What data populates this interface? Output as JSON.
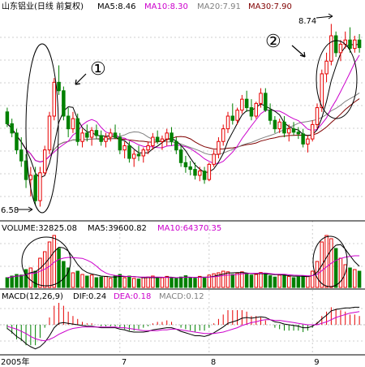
{
  "colors": {
    "up": "#e60000",
    "down": "#008000",
    "ma5": "#000000",
    "ma10": "#cc00cc",
    "ma20": "#808080",
    "ma30": "#800000",
    "vol_ma5": "#000000",
    "vol_ma10": "#cc00cc",
    "dif": "#000000",
    "dea": "#cc00cc",
    "text_black": "#000000",
    "text_gray": "#808080"
  },
  "header": {
    "title": "山东铝业(日线 前复权)",
    "ma5": "MA5:8.46",
    "ma10": "MA10:8.30",
    "ma20": "MA20:7.91",
    "ma30": "MA30:7.90"
  },
  "volume_header": {
    "volume": "VOLUME:32825.08",
    "ma5": "MA5:39600.82",
    "ma10": "MA10:64370.35"
  },
  "macd_header": {
    "title": "MACD(12,26,9)",
    "dif": "DIF:0.24",
    "dea": "DEA:0.18",
    "macd": "MACD:0.12"
  },
  "annotations": {
    "low_label": "6.58",
    "high_label": "8.74",
    "marker1": "①",
    "marker2": "②"
  },
  "x_axis": {
    "year": "2005年",
    "month_labels": [
      "7",
      "8",
      "9"
    ]
  },
  "chart_data": {
    "type": "candlestick",
    "title": "山东铝业(日线 前复权)",
    "price_range": [
      6.45,
      8.85
    ],
    "low_point": 6.58,
    "high_point": 8.74,
    "month_ticks": [
      {
        "label": "7",
        "index": 24
      },
      {
        "label": "8",
        "index": 43
      },
      {
        "label": "9",
        "index": 65
      }
    ],
    "candles": [
      [
        7.7,
        7.75,
        7.52,
        7.56
      ],
      [
        7.56,
        7.62,
        7.4,
        7.45
      ],
      [
        7.45,
        7.5,
        7.2,
        7.25
      ],
      [
        7.25,
        7.4,
        7.05,
        7.12
      ],
      [
        7.12,
        7.2,
        6.8,
        6.9
      ],
      [
        6.9,
        7.05,
        6.7,
        6.95
      ],
      [
        6.95,
        7.05,
        6.6,
        6.65
      ],
      [
        6.65,
        7.05,
        6.58,
        6.98
      ],
      [
        6.98,
        7.3,
        6.95,
        7.25
      ],
      [
        7.25,
        7.7,
        7.2,
        7.65
      ],
      [
        7.65,
        8.1,
        7.6,
        8.05
      ],
      [
        8.05,
        8.25,
        7.9,
        7.95
      ],
      [
        7.95,
        8.0,
        7.6,
        7.65
      ],
      [
        7.65,
        7.75,
        7.4,
        7.5
      ],
      [
        7.5,
        7.7,
        7.45,
        7.62
      ],
      [
        7.62,
        7.68,
        7.3,
        7.35
      ],
      [
        7.35,
        7.5,
        7.28,
        7.45
      ],
      [
        7.45,
        7.55,
        7.35,
        7.4
      ],
      [
        7.4,
        7.52,
        7.3,
        7.48
      ],
      [
        7.48,
        7.55,
        7.38,
        7.42
      ],
      [
        7.42,
        7.48,
        7.3,
        7.35
      ],
      [
        7.35,
        7.45,
        7.28,
        7.4
      ],
      [
        7.4,
        7.5,
        7.35,
        7.45
      ],
      [
        7.45,
        7.55,
        7.38,
        7.4
      ],
      [
        7.4,
        7.45,
        7.2,
        7.25
      ],
      [
        7.25,
        7.35,
        7.15,
        7.3
      ],
      [
        7.3,
        7.35,
        7.1,
        7.15
      ],
      [
        7.15,
        7.25,
        7.05,
        7.2
      ],
      [
        7.2,
        7.3,
        7.12,
        7.18
      ],
      [
        7.18,
        7.28,
        7.1,
        7.25
      ],
      [
        7.25,
        7.35,
        7.2,
        7.3
      ],
      [
        7.3,
        7.45,
        7.25,
        7.4
      ],
      [
        7.4,
        7.48,
        7.32,
        7.35
      ],
      [
        7.35,
        7.42,
        7.25,
        7.38
      ],
      [
        7.38,
        7.5,
        7.3,
        7.45
      ],
      [
        7.45,
        7.52,
        7.3,
        7.35
      ],
      [
        7.35,
        7.4,
        7.2,
        7.25
      ],
      [
        7.25,
        7.3,
        7.05,
        7.1
      ],
      [
        7.1,
        7.18,
        6.98,
        7.05
      ],
      [
        7.05,
        7.12,
        6.95,
        7.02
      ],
      [
        7.02,
        7.1,
        6.9,
        6.95
      ],
      [
        6.95,
        7.05,
        6.88,
        7.0
      ],
      [
        7.0,
        7.05,
        6.85,
        6.9
      ],
      [
        6.9,
        7.1,
        6.88,
        7.08
      ],
      [
        7.08,
        7.25,
        7.05,
        7.2
      ],
      [
        7.2,
        7.4,
        7.15,
        7.35
      ],
      [
        7.35,
        7.55,
        7.3,
        7.5
      ],
      [
        7.5,
        7.7,
        7.45,
        7.65
      ],
      [
        7.65,
        7.8,
        7.55,
        7.6
      ],
      [
        7.6,
        7.75,
        7.55,
        7.72
      ],
      [
        7.72,
        7.9,
        7.68,
        7.85
      ],
      [
        7.85,
        7.95,
        7.7,
        7.75
      ],
      [
        7.75,
        7.85,
        7.6,
        7.65
      ],
      [
        7.65,
        7.82,
        7.62,
        7.8
      ],
      [
        7.8,
        7.98,
        7.75,
        7.92
      ],
      [
        7.92,
        7.98,
        7.7,
        7.72
      ],
      [
        7.72,
        7.8,
        7.55,
        7.6
      ],
      [
        7.6,
        7.65,
        7.45,
        7.5
      ],
      [
        7.5,
        7.62,
        7.45,
        7.58
      ],
      [
        7.58,
        7.65,
        7.4,
        7.45
      ],
      [
        7.45,
        7.55,
        7.35,
        7.5
      ],
      [
        7.5,
        7.58,
        7.42,
        7.46
      ],
      [
        7.46,
        7.52,
        7.38,
        7.44
      ],
      [
        7.44,
        7.5,
        7.28,
        7.32
      ],
      [
        7.32,
        7.42,
        7.22,
        7.38
      ],
      [
        7.38,
        7.6,
        7.35,
        7.55
      ],
      [
        7.55,
        7.8,
        7.5,
        7.75
      ],
      [
        7.75,
        8.2,
        7.7,
        8.15
      ],
      [
        8.15,
        8.4,
        8.05,
        8.3
      ],
      [
        8.3,
        8.74,
        8.25,
        8.6
      ],
      [
        8.6,
        8.65,
        8.35,
        8.4
      ],
      [
        8.4,
        8.55,
        8.3,
        8.5
      ],
      [
        8.5,
        8.65,
        8.45,
        8.55
      ],
      [
        8.55,
        8.7,
        8.4,
        8.45
      ],
      [
        8.45,
        8.6,
        8.4,
        8.55
      ],
      [
        8.55,
        8.62,
        8.4,
        8.46
      ]
    ],
    "volume": [
      30,
      35,
      40,
      38,
      55,
      60,
      50,
      90,
      110,
      140,
      160,
      120,
      80,
      60,
      45,
      50,
      40,
      35,
      38,
      30,
      32,
      34,
      28,
      36,
      40,
      30,
      35,
      28,
      26,
      30,
      32,
      35,
      28,
      30,
      34,
      30,
      28,
      32,
      36,
      30,
      28,
      34,
      30,
      38,
      42,
      45,
      50,
      48,
      40,
      44,
      48,
      42,
      38,
      40,
      46,
      44,
      36,
      32,
      38,
      40,
      34,
      30,
      32,
      36,
      34,
      50,
      80,
      140,
      160,
      150,
      120,
      90,
      70,
      60,
      55,
      50
    ],
    "macd": {
      "dif": [
        -0.05,
        -0.1,
        -0.16,
        -0.2,
        -0.26,
        -0.3,
        -0.33,
        -0.3,
        -0.24,
        -0.15,
        -0.04,
        0.02,
        0.03,
        0.02,
        0.01,
        0.0,
        -0.01,
        -0.02,
        -0.02,
        -0.03,
        -0.04,
        -0.04,
        -0.04,
        -0.04,
        -0.06,
        -0.07,
        -0.09,
        -0.1,
        -0.1,
        -0.1,
        -0.09,
        -0.07,
        -0.06,
        -0.05,
        -0.04,
        -0.04,
        -0.06,
        -0.09,
        -0.11,
        -0.13,
        -0.15,
        -0.15,
        -0.16,
        -0.14,
        -0.11,
        -0.07,
        -0.03,
        0.02,
        0.04,
        0.06,
        0.09,
        0.1,
        0.09,
        0.1,
        0.11,
        0.1,
        0.07,
        0.04,
        0.03,
        0.01,
        0.0,
        -0.01,
        -0.02,
        -0.04,
        -0.04,
        -0.02,
        0.02,
        0.08,
        0.13,
        0.19,
        0.21,
        0.22,
        0.23,
        0.23,
        0.24,
        0.24
      ],
      "dea": [
        -0.02,
        -0.04,
        -0.06,
        -0.09,
        -0.12,
        -0.16,
        -0.19,
        -0.21,
        -0.22,
        -0.2,
        -0.17,
        -0.13,
        -0.1,
        -0.07,
        -0.05,
        -0.04,
        -0.03,
        -0.03,
        -0.03,
        -0.03,
        -0.03,
        -0.03,
        -0.03,
        -0.03,
        -0.04,
        -0.04,
        -0.05,
        -0.06,
        -0.07,
        -0.08,
        -0.08,
        -0.08,
        -0.08,
        -0.07,
        -0.07,
        -0.06,
        -0.06,
        -0.07,
        -0.08,
        -0.09,
        -0.1,
        -0.11,
        -0.12,
        -0.12,
        -0.12,
        -0.11,
        -0.1,
        -0.08,
        -0.06,
        -0.04,
        -0.01,
        0.01,
        0.03,
        0.04,
        0.06,
        0.07,
        0.07,
        0.06,
        0.06,
        0.05,
        0.04,
        0.03,
        0.02,
        0.01,
        0.0,
        0.0,
        0.0,
        0.02,
        0.04,
        0.07,
        0.1,
        0.12,
        0.14,
        0.16,
        0.17,
        0.18
      ]
    }
  }
}
